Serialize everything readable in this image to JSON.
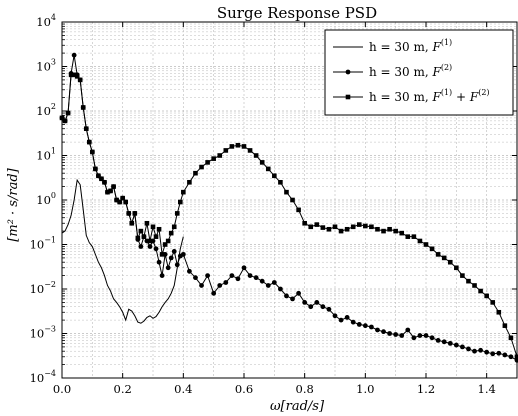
{
  "chart_data": {
    "type": "line",
    "title": "Surge Response PSD",
    "xlabel": "ω[rad/s]",
    "ylabel": "[m² · s/rad]",
    "xlim": [
      0,
      1.5
    ],
    "ylim": [
      0.0001,
      10000
    ],
    "yscale": "log",
    "grid": true,
    "legend_position": "top-right",
    "x_ticks": [
      "0.0",
      "0.2",
      "0.4",
      "0.6",
      "0.8",
      "1.0",
      "1.2",
      "1.4"
    ],
    "y_ticks": [
      {
        "base": "10",
        "exp": "−4"
      },
      {
        "base": "10",
        "exp": "−3"
      },
      {
        "base": "10",
        "exp": "−2"
      },
      {
        "base": "10",
        "exp": "−1"
      },
      {
        "base": "10",
        "exp": "0"
      },
      {
        "base": "10",
        "exp": "1"
      },
      {
        "base": "10",
        "exp": "2"
      },
      {
        "base": "10",
        "exp": "3"
      },
      {
        "base": "10",
        "exp": "4"
      }
    ],
    "colors": {
      "series": "#000000",
      "grid": "#bbbbbb"
    },
    "series": [
      {
        "name": "h = 30 m, F(1)",
        "legend": {
          "prefix": "h = 30 m, ",
          "terms": [
            [
              "F",
              "(1)"
            ]
          ]
        },
        "marker": "none",
        "x": [
          0.0,
          0.01,
          0.02,
          0.03,
          0.04,
          0.05,
          0.06,
          0.07,
          0.08,
          0.09,
          0.1,
          0.11,
          0.12,
          0.13,
          0.14,
          0.15,
          0.16,
          0.17,
          0.18,
          0.19,
          0.2,
          0.21,
          0.22,
          0.23,
          0.24,
          0.25,
          0.26,
          0.27,
          0.28,
          0.29,
          0.3,
          0.31,
          0.32,
          0.33,
          0.34,
          0.35,
          0.36,
          0.37,
          0.38,
          0.39,
          0.4
        ],
        "y": [
          0.18,
          0.2,
          0.28,
          0.45,
          1.0,
          2.8,
          2.2,
          0.6,
          0.16,
          0.11,
          0.09,
          0.06,
          0.04,
          0.03,
          0.02,
          0.012,
          0.009,
          0.006,
          0.005,
          0.004,
          0.003,
          0.002,
          0.0035,
          0.0032,
          0.0025,
          0.0018,
          0.0017,
          0.0019,
          0.0023,
          0.0025,
          0.0022,
          0.0024,
          0.003,
          0.004,
          0.005,
          0.006,
          0.008,
          0.012,
          0.03,
          0.08,
          0.15
        ]
      },
      {
        "name": "h = 30 m, F(2)",
        "legend": {
          "prefix": "h = 30 m, ",
          "terms": [
            [
              "F",
              "(2)"
            ]
          ]
        },
        "marker": "circle",
        "x": [
          0.0,
          0.01,
          0.02,
          0.03,
          0.04,
          0.05,
          0.06,
          0.07,
          0.08,
          0.09,
          0.1,
          0.11,
          0.12,
          0.13,
          0.14,
          0.15,
          0.16,
          0.17,
          0.18,
          0.19,
          0.2,
          0.21,
          0.22,
          0.23,
          0.24,
          0.25,
          0.26,
          0.27,
          0.28,
          0.29,
          0.3,
          0.31,
          0.32,
          0.33,
          0.34,
          0.35,
          0.36,
          0.37,
          0.38,
          0.39,
          0.4,
          0.42,
          0.44,
          0.46,
          0.48,
          0.5,
          0.52,
          0.54,
          0.56,
          0.58,
          0.6,
          0.62,
          0.64,
          0.66,
          0.68,
          0.7,
          0.72,
          0.74,
          0.76,
          0.78,
          0.8,
          0.82,
          0.84,
          0.86,
          0.88,
          0.9,
          0.92,
          0.94,
          0.96,
          0.98,
          1.0,
          1.02,
          1.04,
          1.06,
          1.08,
          1.1,
          1.12,
          1.14,
          1.16,
          1.18,
          1.2,
          1.22,
          1.24,
          1.26,
          1.28,
          1.3,
          1.32,
          1.34,
          1.36,
          1.38,
          1.4,
          1.42,
          1.44,
          1.46,
          1.48,
          1.5
        ],
        "y": [
          70,
          60,
          90,
          700,
          1800,
          650,
          500,
          120,
          40,
          20,
          12,
          5,
          3.5,
          3.0,
          2.5,
          1.5,
          1.6,
          2.0,
          1.0,
          0.9,
          1.1,
          0.9,
          0.5,
          0.3,
          0.5,
          0.13,
          0.09,
          0.15,
          0.12,
          0.09,
          0.12,
          0.08,
          0.04,
          0.02,
          0.06,
          0.03,
          0.05,
          0.07,
          0.035,
          0.055,
          0.06,
          0.025,
          0.018,
          0.012,
          0.02,
          0.008,
          0.012,
          0.014,
          0.02,
          0.017,
          0.03,
          0.02,
          0.018,
          0.015,
          0.012,
          0.014,
          0.01,
          0.007,
          0.006,
          0.008,
          0.005,
          0.004,
          0.005,
          0.004,
          0.0035,
          0.0025,
          0.002,
          0.0023,
          0.0018,
          0.0016,
          0.0015,
          0.0014,
          0.0012,
          0.0011,
          0.001,
          0.00095,
          0.0009,
          0.0012,
          0.0008,
          0.0009,
          0.0009,
          0.0008,
          0.0007,
          0.00065,
          0.0006,
          0.00055,
          0.0005,
          0.00045,
          0.0004,
          0.00042,
          0.00038,
          0.00035,
          0.00036,
          0.00033,
          0.0003,
          0.00025
        ]
      },
      {
        "name": "h = 30 m, F(1) + F(2)",
        "legend": {
          "prefix": "h = 30 m, ",
          "terms": [
            [
              "F",
              "(1)"
            ],
            [
              "F",
              "(2)"
            ]
          ]
        },
        "marker": "square",
        "x": [
          0.0,
          0.01,
          0.02,
          0.03,
          0.04,
          0.05,
          0.06,
          0.07,
          0.08,
          0.09,
          0.1,
          0.11,
          0.12,
          0.13,
          0.14,
          0.15,
          0.16,
          0.17,
          0.18,
          0.19,
          0.2,
          0.21,
          0.22,
          0.23,
          0.24,
          0.25,
          0.26,
          0.27,
          0.28,
          0.29,
          0.3,
          0.31,
          0.32,
          0.33,
          0.34,
          0.35,
          0.36,
          0.37,
          0.38,
          0.39,
          0.4,
          0.42,
          0.44,
          0.46,
          0.48,
          0.5,
          0.52,
          0.54,
          0.56,
          0.58,
          0.6,
          0.62,
          0.64,
          0.66,
          0.68,
          0.7,
          0.72,
          0.74,
          0.76,
          0.78,
          0.8,
          0.82,
          0.84,
          0.86,
          0.88,
          0.9,
          0.92,
          0.94,
          0.96,
          0.98,
          1.0,
          1.02,
          1.04,
          1.06,
          1.08,
          1.1,
          1.12,
          1.14,
          1.16,
          1.18,
          1.2,
          1.22,
          1.24,
          1.26,
          1.28,
          1.3,
          1.32,
          1.34,
          1.36,
          1.38,
          1.4,
          1.42,
          1.44,
          1.46,
          1.48,
          1.5
        ],
        "y": [
          70,
          60,
          90,
          650,
          650,
          600,
          500,
          120,
          40,
          20,
          12,
          5,
          3.5,
          3.0,
          2.5,
          1.5,
          1.6,
          2.0,
          1.0,
          0.9,
          1.1,
          0.9,
          0.5,
          0.3,
          0.5,
          0.14,
          0.2,
          0.15,
          0.3,
          0.12,
          0.25,
          0.15,
          0.22,
          0.06,
          0.1,
          0.12,
          0.18,
          0.25,
          0.5,
          0.9,
          1.5,
          2.5,
          4.0,
          5.5,
          7.0,
          8.5,
          10,
          13,
          16,
          17,
          16,
          13,
          10,
          7,
          5,
          3.5,
          2.5,
          1.5,
          1.0,
          0.6,
          0.3,
          0.25,
          0.28,
          0.24,
          0.22,
          0.25,
          0.2,
          0.22,
          0.25,
          0.28,
          0.26,
          0.25,
          0.22,
          0.2,
          0.22,
          0.2,
          0.18,
          0.15,
          0.15,
          0.12,
          0.1,
          0.08,
          0.06,
          0.05,
          0.04,
          0.03,
          0.02,
          0.015,
          0.012,
          0.009,
          0.007,
          0.005,
          0.003,
          0.0015,
          0.0008,
          0.0003
        ]
      }
    ]
  }
}
